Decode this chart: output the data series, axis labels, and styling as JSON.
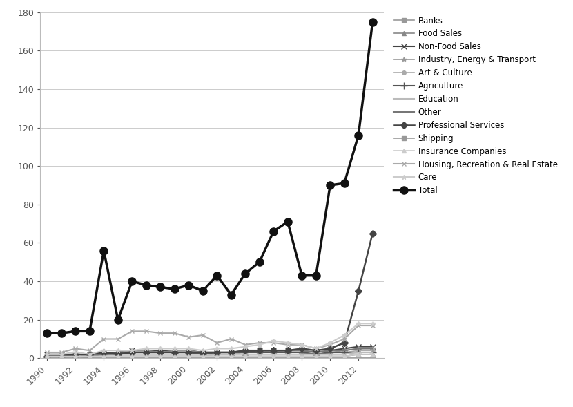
{
  "years": [
    1990,
    1991,
    1992,
    1993,
    1994,
    1995,
    1996,
    1997,
    1998,
    1999,
    2000,
    2001,
    2002,
    2003,
    2004,
    2005,
    2006,
    2007,
    2008,
    2009,
    2010,
    2011,
    2012,
    2013
  ],
  "series": {
    "Banks": [
      1,
      1,
      1,
      0,
      0,
      0,
      0,
      0,
      0,
      0,
      0,
      0,
      0,
      0,
      0,
      0,
      0,
      0,
      0,
      0,
      0,
      0,
      0,
      0
    ],
    "Food Sales": [
      1,
      1,
      1,
      1,
      1,
      1,
      1,
      1,
      1,
      1,
      1,
      1,
      1,
      1,
      1,
      1,
      1,
      1,
      1,
      1,
      1,
      1,
      2,
      2
    ],
    "Non-Food Sales": [
      2,
      2,
      2,
      2,
      2,
      3,
      4,
      4,
      4,
      4,
      4,
      3,
      3,
      3,
      3,
      4,
      4,
      4,
      4,
      3,
      4,
      5,
      6,
      6
    ],
    "Industry, Energy & Transport": [
      2,
      2,
      3,
      2,
      3,
      3,
      4,
      4,
      3,
      4,
      4,
      3,
      3,
      3,
      3,
      3,
      4,
      3,
      3,
      2,
      3,
      4,
      5,
      5
    ],
    "Art & Culture": [
      1,
      1,
      1,
      1,
      2,
      2,
      2,
      2,
      2,
      2,
      2,
      2,
      2,
      2,
      3,
      3,
      3,
      3,
      3,
      2,
      3,
      3,
      4,
      4
    ],
    "Agriculture": [
      1,
      1,
      2,
      1,
      2,
      3,
      3,
      3,
      3,
      3,
      3,
      2,
      3,
      3,
      3,
      3,
      3,
      3,
      3,
      2,
      3,
      3,
      3,
      3
    ],
    "Education": [
      0,
      0,
      1,
      1,
      1,
      1,
      1,
      1,
      1,
      1,
      1,
      1,
      2,
      2,
      2,
      2,
      2,
      2,
      2,
      2,
      2,
      2,
      3,
      3
    ],
    "Other": [
      1,
      1,
      2,
      2,
      2,
      2,
      3,
      3,
      3,
      3,
      3,
      3,
      3,
      3,
      4,
      4,
      4,
      4,
      4,
      3,
      4,
      4,
      5,
      5
    ],
    "Professional Services": [
      1,
      1,
      2,
      2,
      3,
      2,
      3,
      3,
      3,
      3,
      3,
      3,
      3,
      3,
      4,
      4,
      4,
      4,
      5,
      4,
      5,
      8,
      35,
      65
    ],
    "Shipping": [
      0,
      0,
      0,
      0,
      0,
      0,
      0,
      0,
      0,
      0,
      0,
      0,
      0,
      0,
      0,
      0,
      0,
      0,
      0,
      0,
      0,
      0,
      0,
      0
    ],
    "Insurance Companies": [
      1,
      1,
      1,
      1,
      1,
      1,
      1,
      1,
      1,
      1,
      1,
      1,
      1,
      1,
      1,
      1,
      1,
      1,
      1,
      1,
      1,
      1,
      2,
      2
    ],
    "Housing, Recreation & Real Estate": [
      3,
      3,
      5,
      4,
      10,
      10,
      14,
      14,
      13,
      13,
      11,
      12,
      8,
      10,
      7,
      8,
      8,
      7,
      7,
      5,
      7,
      10,
      17,
      17
    ],
    "Care": [
      2,
      2,
      3,
      2,
      4,
      4,
      4,
      5,
      5,
      5,
      5,
      4,
      5,
      5,
      6,
      7,
      9,
      8,
      7,
      5,
      8,
      12,
      18,
      18
    ],
    "Total": [
      13,
      13,
      14,
      14,
      56,
      20,
      40,
      38,
      37,
      36,
      38,
      35,
      43,
      33,
      44,
      50,
      66,
      71,
      43,
      43,
      90,
      91,
      116,
      175
    ]
  },
  "series_styles": {
    "Banks": {
      "color": "#999999",
      "marker": "s",
      "linestyle": "-",
      "linewidth": 1.2,
      "markersize": 4
    },
    "Food Sales": {
      "color": "#888888",
      "marker": "^",
      "linestyle": "-",
      "linewidth": 1.2,
      "markersize": 4
    },
    "Non-Food Sales": {
      "color": "#444444",
      "marker": "x",
      "linestyle": "-",
      "linewidth": 1.5,
      "markersize": 6
    },
    "Industry, Energy & Transport": {
      "color": "#999999",
      "marker": "*",
      "linestyle": "-",
      "linewidth": 1.2,
      "markersize": 6
    },
    "Art & Culture": {
      "color": "#aaaaaa",
      "marker": "o",
      "linestyle": "-",
      "linewidth": 1.2,
      "markersize": 4
    },
    "Agriculture": {
      "color": "#555555",
      "marker": "+",
      "linestyle": "-",
      "linewidth": 1.5,
      "markersize": 7
    },
    "Education": {
      "color": "#bbbbbb",
      "marker": "None",
      "linestyle": "-",
      "linewidth": 1.5,
      "markersize": 0
    },
    "Other": {
      "color": "#777777",
      "marker": "None",
      "linestyle": "-",
      "linewidth": 1.5,
      "markersize": 0
    },
    "Professional Services": {
      "color": "#444444",
      "marker": "D",
      "linestyle": "-",
      "linewidth": 1.8,
      "markersize": 5
    },
    "Shipping": {
      "color": "#999999",
      "marker": "s",
      "linestyle": "-",
      "linewidth": 1.2,
      "markersize": 4
    },
    "Insurance Companies": {
      "color": "#cccccc",
      "marker": "^",
      "linestyle": "-",
      "linewidth": 1.2,
      "markersize": 4
    },
    "Housing, Recreation & Real Estate": {
      "color": "#aaaaaa",
      "marker": "x",
      "linestyle": "-",
      "linewidth": 1.5,
      "markersize": 5
    },
    "Care": {
      "color": "#cccccc",
      "marker": "*",
      "linestyle": "-",
      "linewidth": 1.5,
      "markersize": 5
    },
    "Total": {
      "color": "#111111",
      "marker": "o",
      "linestyle": "-",
      "linewidth": 2.5,
      "markersize": 8,
      "markerfacecolor": "#111111"
    }
  },
  "legend_order": [
    "Banks",
    "Food Sales",
    "Non-Food Sales",
    "Industry, Energy & Transport",
    "Art & Culture",
    "Agriculture",
    "Education",
    "Other",
    "Professional Services",
    "Shipping",
    "Insurance Companies",
    "Housing, Recreation & Real Estate",
    "Care",
    "Total"
  ],
  "ylim": [
    0,
    180
  ],
  "yticks": [
    0,
    20,
    40,
    60,
    80,
    100,
    120,
    140,
    160,
    180
  ],
  "xticks": [
    1990,
    1992,
    1994,
    1996,
    1998,
    2000,
    2002,
    2004,
    2006,
    2008,
    2010,
    2012
  ],
  "xlim_left": 1989.5,
  "xlim_right": 2013.8,
  "background_color": "#ffffff",
  "grid_color": "#cccccc"
}
